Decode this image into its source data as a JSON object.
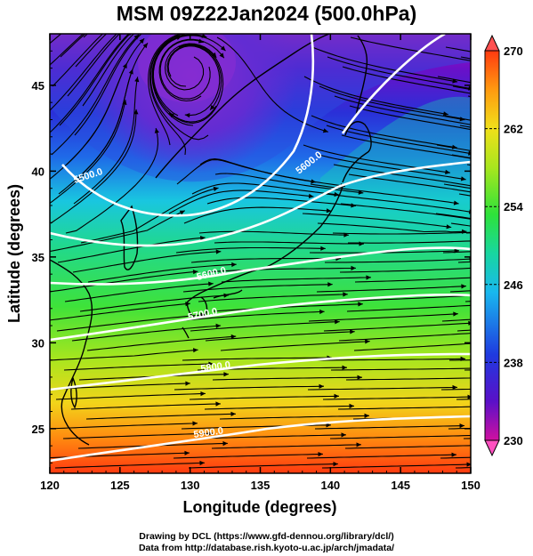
{
  "title": "MSM 09Z22Jan2024 (500.0hPa)",
  "axes": {
    "x_label": "Longitude (degrees)",
    "y_label": "Latitude  (degrees)",
    "x_ticks": [
      "120",
      "125",
      "130",
      "135",
      "140",
      "145",
      "150"
    ],
    "y_ticks": [
      "25",
      "30",
      "35",
      "40",
      "45"
    ]
  },
  "colorbar": {
    "min": 230,
    "max": 270,
    "tick_labels": [
      "270",
      "262",
      "254",
      "246",
      "238",
      "230"
    ],
    "colors": [
      "#d010a0",
      "#5a10c8",
      "#1f3ae0",
      "#19b8ee",
      "#18d6a0",
      "#2ee23a",
      "#a8e61e",
      "#f0e01a",
      "#ff9a10",
      "#ff3a10"
    ]
  },
  "contours": [
    {
      "label": "5500.0"
    },
    {
      "label": "5600.0"
    },
    {
      "label": "5700.0"
    },
    {
      "label": "5800.0"
    },
    {
      "label": "5900.0"
    },
    {
      "label": "5600.0"
    }
  ],
  "footer": {
    "line1": "Drawing by DCL (https://www.gfd-dennou.org/library/dcl/)",
    "line2": "Data from http://database.rish.kyoto-u.ac.jp/arch/jmadata/"
  }
}
